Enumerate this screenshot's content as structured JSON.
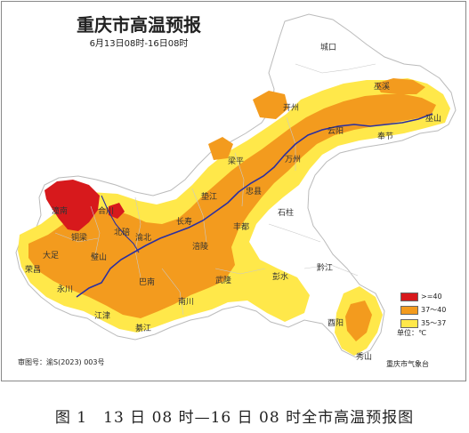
{
  "map": {
    "title": "重庆市高温预报",
    "subtitle": "6月13日08时-16日08时",
    "approval_no": "审图号：渝S(2023) 003号",
    "agency": "重庆市气象台",
    "unit_label": "单位：℃",
    "colors": {
      "over40": "#d7191c",
      "t37_40": "#f39b1e",
      "t35_37": "#ffe84a",
      "background_region": "#ffffff",
      "border": "#bbbbbb",
      "river": "#2b2fa0"
    },
    "legend": [
      {
        "label": ">=40",
        "color": "#d7191c"
      },
      {
        "label": "37～40",
        "color": "#f39b1e"
      },
      {
        "label": "35～37",
        "color": "#ffe84a"
      }
    ],
    "places": {
      "chengkou": "城口",
      "wuxi": "巫溪",
      "kaizhou": "开州",
      "wushan": "巫山",
      "yunyang": "云阳",
      "fengjie": "奉节",
      "wanzhou": "万州",
      "liangping": "梁平",
      "zhongxian": "忠县",
      "dianjiang": "垫江",
      "shizhu": "石柱",
      "fengdu": "丰都",
      "changshou": "长寿",
      "fuling": "涪陵",
      "tongnan": "潼南",
      "hechuan": "合川",
      "tongliang": "铜梁",
      "beibei": "北碚",
      "yubei": "渝北",
      "dazu": "大足",
      "bishan": "璧山",
      "rongchang": "荣昌",
      "yongchuan": "永川",
      "jiangjin": "江津",
      "banan": "巴南",
      "qijiang": "綦江",
      "nanchuan": "南川",
      "wulong": "武隆",
      "pengshui": "彭水",
      "qianjiang": "黔江",
      "youyang": "酉阳",
      "xiushan": "秀山"
    }
  },
  "caption": "图 1　13 日 08 时—16 日 08 时全市高温预报图"
}
